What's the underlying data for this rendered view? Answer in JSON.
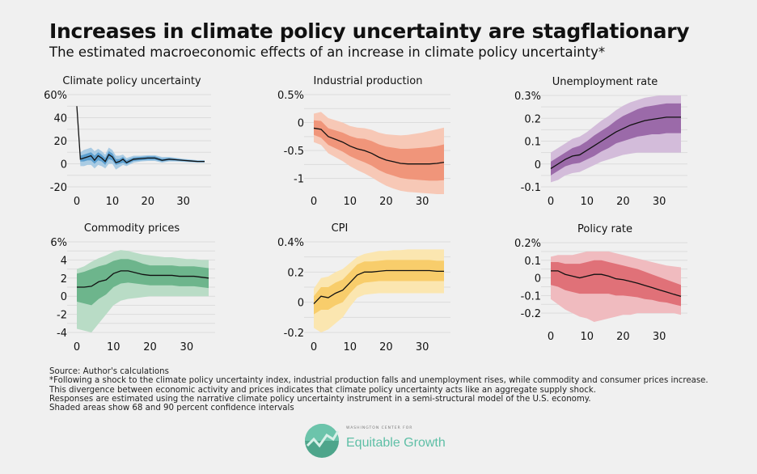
{
  "title": "Increases in climate policy uncertainty are stagflationary",
  "subtitle": "The estimated macroeconomic effects of an increase in climate policy uncertainty*",
  "notes": [
    "Source: Author's calculations",
    "*Following a shock to the climate policy uncertainty index, industrial production falls and unemployment rises, while commodity and consumer prices increase.",
    "This divergence between economic activity and prices indicates that climate policy uncertainty acts like an aggregate supply shock.",
    "Responses are estimated using the narrative climate policy uncertainty instrument in a semi-structural model of the U.S. economy.",
    "Shaded areas show 68 and 90 percent confidence intervals"
  ],
  "logo": {
    "small": "WASHINGTON CENTER FOR",
    "name": "Equitable Growth"
  },
  "chart_data": [
    {
      "type": "area",
      "title": "Climate policy uncertainty",
      "colors": {
        "band90": "#a9cbe3",
        "band68": "#5c9fcf",
        "line": "#111111"
      },
      "xticks": [
        0,
        10,
        20,
        30
      ],
      "yticks": [
        -20,
        0,
        20,
        40,
        60
      ],
      "ytick_labels": [
        "-20",
        "0",
        "20",
        "40",
        "60%"
      ],
      "ylim": [
        -20,
        60
      ],
      "xlim": [
        0,
        36
      ],
      "x": [
        0,
        1,
        2,
        3,
        4,
        5,
        6,
        7,
        8,
        9,
        10,
        11,
        12,
        13,
        14,
        16,
        18,
        20,
        22,
        24,
        26,
        28,
        30,
        32,
        34,
        36
      ],
      "median": [
        50,
        4,
        5,
        6,
        7,
        3,
        7,
        5,
        2,
        8,
        6,
        1,
        2,
        4,
        1,
        4,
        4.5,
        5,
        5,
        3,
        4,
        3.5,
        3,
        2.5,
        2,
        2
      ],
      "lo68": [
        50,
        2,
        2,
        3,
        3,
        0,
        3,
        2,
        -1,
        4,
        3,
        -1,
        0,
        1,
        -0.5,
        2.5,
        3,
        3.5,
        3.5,
        2,
        3,
        2.7,
        2.3,
        1.8,
        1.4,
        1.4
      ],
      "hi68": [
        50,
        7,
        8,
        9,
        10,
        7,
        10,
        8,
        5,
        11,
        9,
        4,
        4,
        6,
        3,
        5.5,
        6,
        6.5,
        6.5,
        4.5,
        5,
        4.4,
        3.7,
        3.2,
        2.6,
        2.6
      ],
      "lo90": [
        50,
        -2,
        -2,
        -1,
        -1,
        -4,
        -1,
        -2,
        -4,
        0,
        0,
        -5,
        -3,
        -1,
        -2,
        1,
        2,
        2.5,
        2.5,
        1,
        2,
        2,
        1.7,
        1.3,
        1,
        1
      ],
      "hi90": [
        50,
        10,
        12,
        13,
        14,
        11,
        13,
        11,
        8,
        14,
        12,
        7,
        7,
        8,
        5,
        7,
        7,
        7.5,
        7.5,
        6,
        6,
        5.2,
        4.3,
        3.8,
        3.1,
        3.1
      ]
    },
    {
      "type": "area",
      "title": "Industrial production",
      "colors": {
        "band90": "#f7c8b6",
        "band68": "#f0957a",
        "line": "#111111"
      },
      "xticks": [
        0,
        10,
        20,
        30
      ],
      "yticks": [
        -1,
        -0.5,
        0,
        0.5
      ],
      "ytick_labels": [
        "-1",
        "-0.5",
        "0",
        "0.5%"
      ],
      "ylim": [
        -1.15,
        0.5
      ],
      "xlim": [
        0,
        36
      ],
      "x": [
        0,
        2,
        4,
        6,
        8,
        10,
        12,
        14,
        16,
        18,
        20,
        22,
        24,
        26,
        28,
        30,
        32,
        34,
        36
      ],
      "median": [
        -0.1,
        -0.12,
        -0.25,
        -0.3,
        -0.35,
        -0.42,
        -0.47,
        -0.5,
        -0.55,
        -0.62,
        -0.67,
        -0.7,
        -0.73,
        -0.74,
        -0.74,
        -0.74,
        -0.74,
        -0.73,
        -0.71
      ],
      "lo68": [
        -0.22,
        -0.27,
        -0.4,
        -0.46,
        -0.52,
        -0.6,
        -0.66,
        -0.71,
        -0.77,
        -0.85,
        -0.91,
        -0.95,
        -0.99,
        -1.01,
        -1.02,
        -1.03,
        -1.04,
        -1.04,
        -1.03
      ],
      "hi68": [
        0.04,
        0.03,
        -0.1,
        -0.14,
        -0.18,
        -0.24,
        -0.28,
        -0.29,
        -0.33,
        -0.39,
        -0.43,
        -0.45,
        -0.47,
        -0.47,
        -0.46,
        -0.45,
        -0.44,
        -0.42,
        -0.39
      ],
      "lo90": [
        -0.35,
        -0.4,
        -0.55,
        -0.62,
        -0.69,
        -0.78,
        -0.85,
        -0.91,
        -0.98,
        -1.06,
        -1.13,
        -1.18,
        -1.22,
        -1.24,
        -1.25,
        -1.26,
        -1.27,
        -1.28,
        -1.28
      ],
      "hi90": [
        0.16,
        0.19,
        0.08,
        0.04,
        0.0,
        -0.06,
        -0.09,
        -0.1,
        -0.13,
        -0.18,
        -0.21,
        -0.22,
        -0.23,
        -0.22,
        -0.2,
        -0.18,
        -0.15,
        -0.12,
        -0.09
      ]
    },
    {
      "type": "area",
      "title": "Unemployment rate",
      "colors": {
        "band90": "#d3bcda",
        "band68": "#9b6aa9",
        "line": "#111111"
      },
      "xticks": [
        0,
        10,
        20,
        30
      ],
      "yticks": [
        -0.1,
        0,
        0.1,
        0.2,
        0.3
      ],
      "ytick_labels": [
        "-0.1",
        "0",
        "0.1",
        "0.2",
        "0.3%"
      ],
      "ylim": [
        -0.1,
        0.3
      ],
      "xlim": [
        0,
        36
      ],
      "x": [
        0,
        2,
        4,
        6,
        8,
        10,
        12,
        14,
        16,
        18,
        20,
        22,
        24,
        26,
        28,
        30,
        32,
        34,
        36
      ],
      "median": [
        -0.02,
        0.0,
        0.02,
        0.035,
        0.04,
        0.06,
        0.08,
        0.1,
        0.12,
        0.14,
        0.155,
        0.17,
        0.18,
        0.19,
        0.195,
        0.2,
        0.205,
        0.205,
        0.205
      ],
      "lo68": [
        -0.05,
        -0.03,
        -0.01,
        0.0,
        0.005,
        0.02,
        0.035,
        0.055,
        0.07,
        0.09,
        0.1,
        0.11,
        0.12,
        0.125,
        0.13,
        0.13,
        0.135,
        0.135,
        0.135
      ],
      "hi68": [
        0.01,
        0.03,
        0.05,
        0.07,
        0.08,
        0.1,
        0.125,
        0.145,
        0.165,
        0.19,
        0.21,
        0.225,
        0.24,
        0.25,
        0.255,
        0.26,
        0.265,
        0.265,
        0.265
      ],
      "lo90": [
        -0.08,
        -0.07,
        -0.05,
        -0.04,
        -0.035,
        -0.02,
        -0.005,
        0.01,
        0.02,
        0.03,
        0.04,
        0.045,
        0.05,
        0.05,
        0.05,
        0.05,
        0.05,
        0.05,
        0.05
      ],
      "hi90": [
        0.05,
        0.07,
        0.09,
        0.11,
        0.12,
        0.14,
        0.165,
        0.19,
        0.21,
        0.235,
        0.255,
        0.27,
        0.28,
        0.29,
        0.295,
        0.3,
        0.3,
        0.3,
        0.3
      ]
    },
    {
      "type": "area",
      "title": "Commodity prices",
      "colors": {
        "band90": "#b9dcc6",
        "band68": "#6db58c",
        "line": "#111111"
      },
      "xticks": [
        0,
        10,
        20,
        30
      ],
      "yticks": [
        -4,
        -2,
        0,
        2,
        4,
        6
      ],
      "ytick_labels": [
        "-4",
        "-2",
        "0",
        "2",
        "4",
        "6%"
      ],
      "ylim": [
        -4,
        6
      ],
      "xlim": [
        0,
        36
      ],
      "x": [
        0,
        2,
        4,
        6,
        8,
        10,
        12,
        14,
        16,
        18,
        20,
        22,
        24,
        26,
        28,
        30,
        32,
        34,
        36
      ],
      "median": [
        1,
        1,
        1.1,
        1.6,
        1.8,
        2.5,
        2.8,
        2.8,
        2.6,
        2.4,
        2.3,
        2.3,
        2.3,
        2.3,
        2.2,
        2.2,
        2.2,
        2.1,
        2.0
      ],
      "lo68": [
        -0.6,
        -0.8,
        -1,
        -0.3,
        0.2,
        1.0,
        1.4,
        1.5,
        1.4,
        1.3,
        1.2,
        1.2,
        1.2,
        1.2,
        1.1,
        1.1,
        1.1,
        1.0,
        0.9
      ],
      "hi68": [
        2.5,
        2.7,
        3.0,
        3.3,
        3.5,
        3.9,
        4.1,
        4.1,
        3.9,
        3.6,
        3.4,
        3.4,
        3.4,
        3.4,
        3.3,
        3.3,
        3.3,
        3.2,
        3.1
      ],
      "lo90": [
        -3.6,
        -3.8,
        -4,
        -3,
        -2,
        -1,
        -0.5,
        -0.3,
        -0.2,
        -0.1,
        0,
        0,
        0,
        0,
        0,
        0,
        0,
        0,
        0
      ],
      "hi90": [
        3,
        3.3,
        3.8,
        4.2,
        4.5,
        4.9,
        5.1,
        5,
        4.8,
        4.6,
        4.5,
        4.4,
        4.3,
        4.3,
        4.2,
        4.1,
        4.1,
        4.0,
        4.0
      ]
    },
    {
      "type": "area",
      "title": "CPI",
      "colors": {
        "band90": "#fbe6b0",
        "band68": "#f8cd6b",
        "line": "#111111"
      },
      "xticks": [
        0,
        10,
        20,
        30
      ],
      "yticks": [
        -0.2,
        0,
        0.2,
        0.4
      ],
      "ytick_labels": [
        "-0.2",
        "0",
        "0.2",
        "0.4%"
      ],
      "ylim": [
        -0.2,
        0.4
      ],
      "xlim": [
        0,
        36
      ],
      "x": [
        0,
        2,
        4,
        6,
        8,
        10,
        12,
        14,
        16,
        18,
        20,
        22,
        24,
        26,
        28,
        30,
        32,
        34,
        36
      ],
      "median": [
        -0.01,
        0.04,
        0.03,
        0.06,
        0.08,
        0.13,
        0.18,
        0.2,
        0.2,
        0.205,
        0.21,
        0.21,
        0.21,
        0.21,
        0.21,
        0.21,
        0.21,
        0.205,
        0.205
      ],
      "lo68": [
        -0.08,
        -0.05,
        -0.05,
        -0.02,
        0.0,
        0.06,
        0.11,
        0.13,
        0.135,
        0.14,
        0.14,
        0.14,
        0.14,
        0.14,
        0.14,
        0.14,
        0.14,
        0.14,
        0.14
      ],
      "hi68": [
        0.04,
        0.1,
        0.1,
        0.13,
        0.15,
        0.2,
        0.25,
        0.27,
        0.27,
        0.275,
        0.28,
        0.28,
        0.28,
        0.28,
        0.28,
        0.28,
        0.28,
        0.275,
        0.275
      ],
      "lo90": [
        -0.17,
        -0.2,
        -0.18,
        -0.14,
        -0.1,
        -0.03,
        0.03,
        0.05,
        0.055,
        0.06,
        0.06,
        0.06,
        0.06,
        0.06,
        0.06,
        0.06,
        0.06,
        0.06,
        0.06
      ],
      "hi90": [
        0.09,
        0.16,
        0.17,
        0.2,
        0.22,
        0.26,
        0.3,
        0.32,
        0.33,
        0.34,
        0.34,
        0.345,
        0.345,
        0.35,
        0.35,
        0.35,
        0.35,
        0.35,
        0.35
      ]
    },
    {
      "type": "area",
      "title": "Policy rate",
      "colors": {
        "band90": "#f0bbbf",
        "band68": "#e07178",
        "line": "#111111"
      },
      "xticks": [
        0,
        10,
        20,
        30
      ],
      "yticks": [
        -0.2,
        -0.1,
        0,
        0.1,
        0.2
      ],
      "ytick_labels": [
        "-0.2",
        "-0.1",
        "0",
        "0.1",
        "0.2%"
      ],
      "ylim": [
        -0.25,
        0.2
      ],
      "xlim": [
        0,
        36
      ],
      "x": [
        0,
        2,
        4,
        6,
        8,
        10,
        12,
        14,
        16,
        18,
        20,
        22,
        24,
        26,
        28,
        30,
        32,
        34,
        36
      ],
      "median": [
        0.04,
        0.04,
        0.02,
        0.01,
        0.0,
        0.01,
        0.02,
        0.02,
        0.01,
        -0.005,
        -0.01,
        -0.02,
        -0.03,
        -0.043,
        -0.055,
        -0.068,
        -0.08,
        -0.093,
        -0.105
      ],
      "lo68": [
        -0.04,
        -0.05,
        -0.07,
        -0.08,
        -0.09,
        -0.09,
        -0.09,
        -0.09,
        -0.09,
        -0.1,
        -0.1,
        -0.105,
        -0.11,
        -0.12,
        -0.125,
        -0.135,
        -0.14,
        -0.15,
        -0.16
      ],
      "hi68": [
        0.09,
        0.09,
        0.08,
        0.08,
        0.08,
        0.09,
        0.1,
        0.1,
        0.09,
        0.08,
        0.07,
        0.06,
        0.05,
        0.035,
        0.02,
        0.005,
        -0.01,
        -0.025,
        -0.04
      ],
      "lo90": [
        -0.12,
        -0.15,
        -0.18,
        -0.2,
        -0.22,
        -0.23,
        -0.25,
        -0.24,
        -0.23,
        -0.22,
        -0.21,
        -0.21,
        -0.2,
        -0.2,
        -0.2,
        -0.2,
        -0.2,
        -0.2,
        -0.21
      ],
      "hi90": [
        0.12,
        0.13,
        0.13,
        0.13,
        0.14,
        0.15,
        0.15,
        0.15,
        0.15,
        0.14,
        0.13,
        0.12,
        0.11,
        0.1,
        0.09,
        0.08,
        0.07,
        0.065,
        0.06
      ]
    }
  ]
}
